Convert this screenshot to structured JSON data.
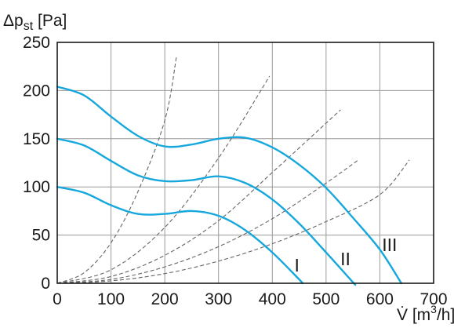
{
  "colors": {
    "fan_curve": "#16a8dc",
    "system_curve": "#666666",
    "grid": "#9a9a9a",
    "axis": "#1a1a1a",
    "text": "#1a1a1a"
  },
  "chart_data": {
    "type": "line",
    "ylabel": {
      "prefix": "Δp",
      "subscript": "st",
      "unit": " [Pa]"
    },
    "xlabel": {
      "prefix": "V̇ [m",
      "superscript": "3",
      "suffix": "/h]"
    },
    "xlim": [
      0,
      700
    ],
    "ylim": [
      0,
      250
    ],
    "x_ticks": [
      "0",
      "100",
      "200",
      "300",
      "400",
      "500",
      "600",
      "700"
    ],
    "y_ticks": [
      "0",
      "50",
      "100",
      "150",
      "200",
      "250"
    ],
    "grid": true,
    "fan_curves": [
      {
        "name": "I",
        "points": [
          [
            0,
            100
          ],
          [
            50,
            94
          ],
          [
            100,
            81
          ],
          [
            150,
            72
          ],
          [
            200,
            72
          ],
          [
            250,
            75
          ],
          [
            300,
            70
          ],
          [
            350,
            55
          ],
          [
            400,
            32
          ],
          [
            450,
            4
          ],
          [
            456,
            0
          ]
        ]
      },
      {
        "name": "II",
        "points": [
          [
            0,
            150
          ],
          [
            50,
            143
          ],
          [
            100,
            127
          ],
          [
            150,
            112
          ],
          [
            200,
            106
          ],
          [
            250,
            107
          ],
          [
            300,
            111
          ],
          [
            350,
            104
          ],
          [
            400,
            87
          ],
          [
            450,
            62
          ],
          [
            500,
            32
          ],
          [
            550,
            1
          ],
          [
            552,
            0
          ]
        ]
      },
      {
        "name": "III",
        "points": [
          [
            0,
            204
          ],
          [
            50,
            195
          ],
          [
            100,
            173
          ],
          [
            150,
            153
          ],
          [
            200,
            142
          ],
          [
            250,
            144
          ],
          [
            300,
            150
          ],
          [
            350,
            151
          ],
          [
            400,
            141
          ],
          [
            450,
            123
          ],
          [
            500,
            99
          ],
          [
            550,
            68
          ],
          [
            600,
            35
          ],
          [
            640,
            0
          ]
        ]
      }
    ],
    "system_curves": [
      {
        "points": [
          [
            0,
            0
          ],
          [
            50,
            11
          ],
          [
            100,
            42
          ],
          [
            150,
            95
          ],
          [
            200,
            169
          ],
          [
            222,
            236
          ]
        ]
      },
      {
        "points": [
          [
            0,
            0
          ],
          [
            100,
            14
          ],
          [
            200,
            58
          ],
          [
            300,
            130
          ],
          [
            395,
            215
          ]
        ]
      },
      {
        "points": [
          [
            0,
            0
          ],
          [
            100,
            7
          ],
          [
            200,
            29
          ],
          [
            300,
            65
          ],
          [
            400,
            115
          ],
          [
            527,
            180
          ]
        ]
      },
      {
        "points": [
          [
            0,
            0
          ],
          [
            100,
            4
          ],
          [
            200,
            17
          ],
          [
            300,
            38
          ],
          [
            400,
            67
          ],
          [
            500,
            104
          ],
          [
            560,
            128
          ]
        ]
      },
      {
        "points": [
          [
            0,
            0
          ],
          [
            100,
            2.5
          ],
          [
            200,
            10
          ],
          [
            300,
            23
          ],
          [
            400,
            41
          ],
          [
            500,
            64
          ],
          [
            600,
            92
          ],
          [
            655,
            128
          ]
        ]
      }
    ]
  }
}
